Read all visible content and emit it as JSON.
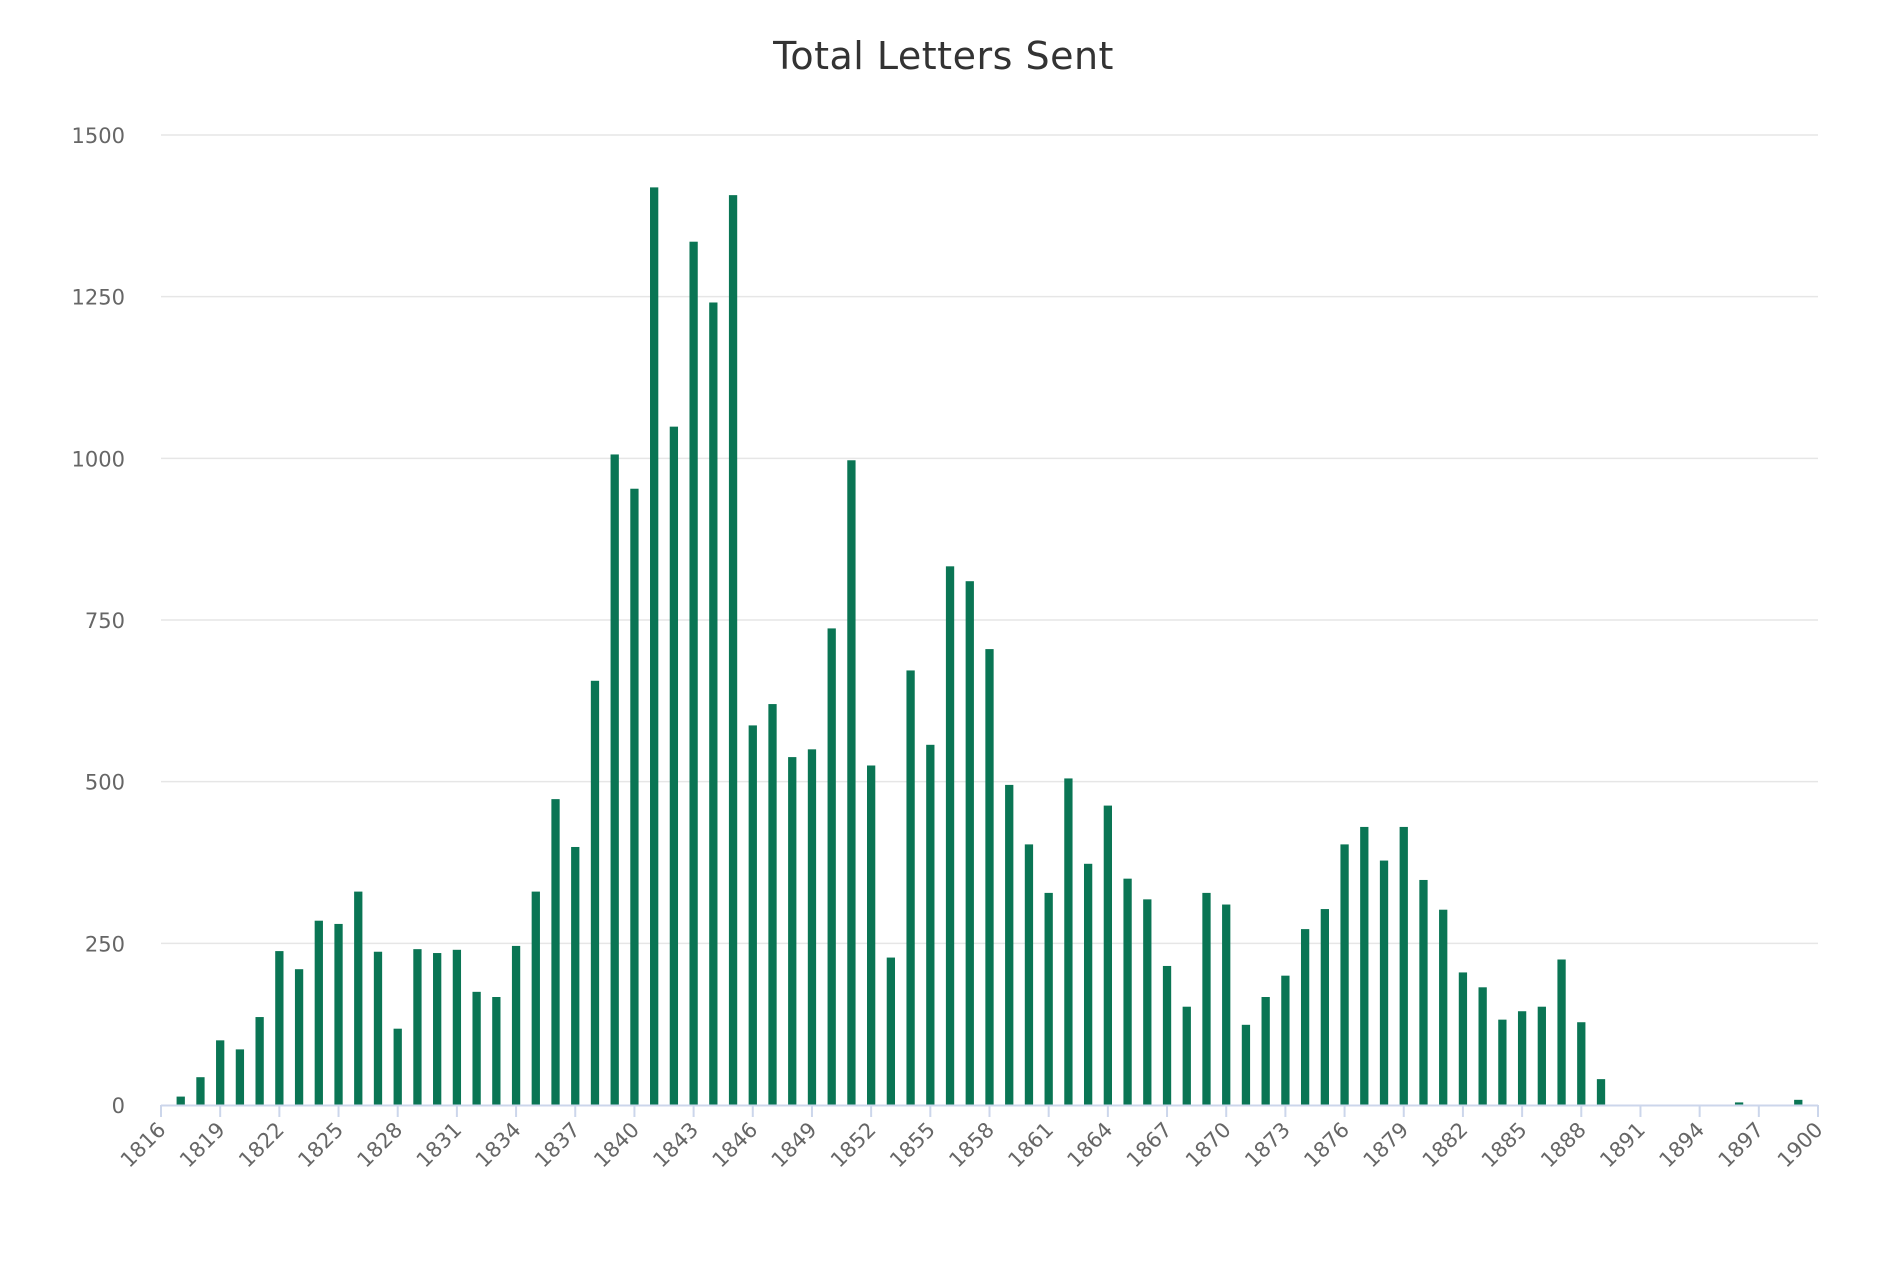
{
  "colors": {
    "bar": "#0a7554",
    "grid": "#e6e6e6",
    "axis_line": "#ccd6eb",
    "tick_label": "#666666",
    "title": "#333333"
  },
  "chart_data": {
    "type": "bar",
    "title": "Total Letters Sent",
    "xlabel": "",
    "ylabel": "",
    "xlim": [
      1816,
      1900
    ],
    "ylim": [
      0,
      1500
    ],
    "yticks": [
      0,
      250,
      500,
      750,
      1000,
      1250,
      1500
    ],
    "xticks": [
      1816,
      1819,
      1822,
      1825,
      1828,
      1831,
      1834,
      1837,
      1840,
      1843,
      1846,
      1849,
      1852,
      1855,
      1858,
      1861,
      1864,
      1867,
      1870,
      1873,
      1876,
      1879,
      1882,
      1885,
      1888,
      1891,
      1894,
      1897,
      1900
    ],
    "grid": true,
    "legend": "none",
    "x": [
      1817,
      1818,
      1819,
      1820,
      1821,
      1822,
      1823,
      1824,
      1825,
      1826,
      1827,
      1828,
      1829,
      1830,
      1831,
      1832,
      1833,
      1834,
      1835,
      1836,
      1837,
      1838,
      1839,
      1840,
      1841,
      1842,
      1843,
      1844,
      1845,
      1846,
      1847,
      1848,
      1849,
      1850,
      1851,
      1852,
      1853,
      1854,
      1855,
      1856,
      1857,
      1858,
      1859,
      1860,
      1861,
      1862,
      1863,
      1864,
      1865,
      1866,
      1867,
      1868,
      1869,
      1870,
      1871,
      1872,
      1873,
      1874,
      1875,
      1876,
      1877,
      1878,
      1879,
      1880,
      1881,
      1882,
      1883,
      1884,
      1885,
      1886,
      1887,
      1888,
      1889,
      1896,
      1899
    ],
    "values": [
      13,
      43,
      100,
      86,
      136,
      238,
      210,
      285,
      280,
      330,
      237,
      118,
      241,
      235,
      240,
      175,
      167,
      246,
      330,
      473,
      399,
      656,
      1006,
      953,
      1419,
      1049,
      1335,
      1241,
      1407,
      587,
      620,
      538,
      550,
      737,
      997,
      525,
      228,
      672,
      557,
      833,
      810,
      705,
      495,
      403,
      328,
      505,
      373,
      463,
      350,
      318,
      215,
      152,
      328,
      310,
      124,
      167,
      200,
      272,
      303,
      403,
      430,
      378,
      430,
      348,
      302,
      205,
      182,
      132,
      145,
      152,
      225,
      128,
      40,
      4,
      8
    ]
  }
}
